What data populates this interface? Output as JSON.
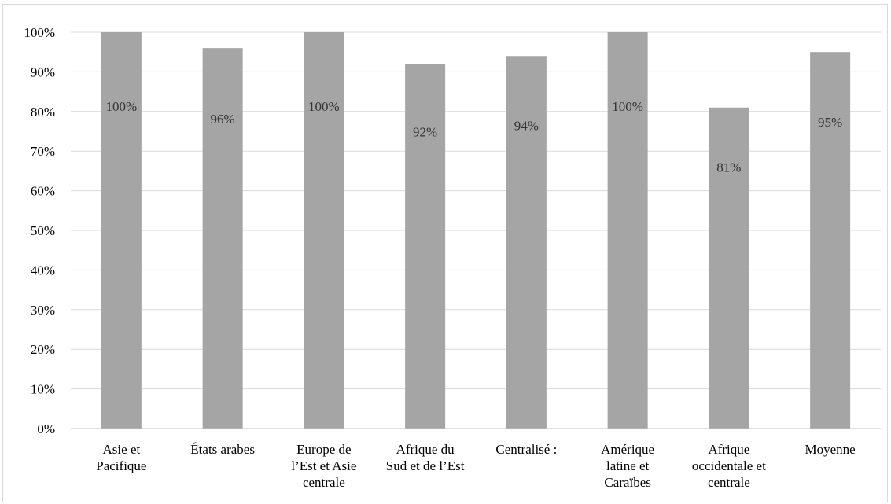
{
  "chart_data": {
    "type": "bar",
    "title": "",
    "xlabel": "",
    "ylabel": "",
    "categories": [
      "Asie et Pacifique",
      "États arabes",
      "Europe de l’Est et Asie centrale",
      "Afrique du Sud et de l’Est",
      "Centralisé :",
      "Amérique latine et Caraïbes",
      "Afrique occidentale et centrale",
      "Moyenne"
    ],
    "category_label_lines": [
      [
        "Asie et",
        "Pacifique"
      ],
      [
        "États arabes"
      ],
      [
        "Europe de",
        "l’Est et Asie",
        "centrale"
      ],
      [
        "Afrique du",
        "Sud et de l’Est"
      ],
      [
        "Centralisé :"
      ],
      [
        "Amérique",
        "latine et",
        "Caraïbes"
      ],
      [
        "Afrique",
        "occidentale et",
        "centrale"
      ],
      [
        "Moyenne"
      ]
    ],
    "values": [
      100,
      96,
      100,
      92,
      94,
      100,
      81,
      95
    ],
    "data_labels": [
      "100%",
      "96%",
      "100%",
      "92%",
      "94%",
      "100%",
      "81%",
      "95%"
    ],
    "ylim": [
      0,
      100
    ],
    "y_ticks": [
      0,
      10,
      20,
      30,
      40,
      50,
      60,
      70,
      80,
      90,
      100
    ],
    "y_tick_labels": [
      "0%",
      "10%",
      "20%",
      "30%",
      "40%",
      "50%",
      "60%",
      "70%",
      "80%",
      "90%",
      "100%"
    ],
    "grid": true,
    "legend": "none",
    "colors": {
      "bar": "#a5a5a5",
      "grid": "#d9d9d9",
      "axis": "#bfbfbf",
      "data_label": "#333333"
    }
  }
}
